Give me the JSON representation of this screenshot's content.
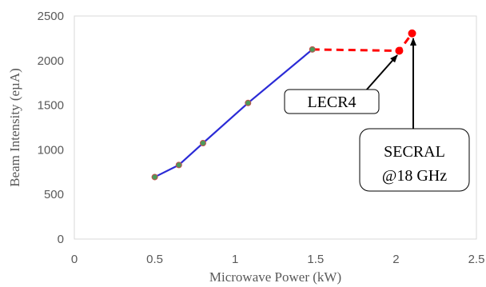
{
  "chart_data": {
    "type": "line",
    "xlabel": "Microwave Power (kW)",
    "ylabel": "Beam Intensity (eµA)",
    "xlim": [
      0,
      2.5
    ],
    "ylim": [
      0,
      2500
    ],
    "x_ticks": [
      "0",
      "0.5",
      "1",
      "1.5",
      "2",
      "2.5"
    ],
    "y_ticks": [
      "0",
      "500",
      "1000",
      "1500",
      "2000",
      "2500"
    ],
    "grid": false,
    "series": [
      {
        "line_color": "#2b2bd6",
        "line_style": "solid",
        "marker_color": "#4c9a5a",
        "points": [
          {
            "x": 0.5,
            "y": 695
          },
          {
            "x": 0.65,
            "y": 830
          },
          {
            "x": 0.8,
            "y": 1075
          },
          {
            "x": 1.08,
            "y": 1525
          },
          {
            "x": 1.48,
            "y": 2125
          }
        ]
      },
      {
        "line_color": "#ff0000",
        "line_style": "dashed",
        "marker_color": "#ff0000",
        "points": [
          {
            "x": 1.48,
            "y": 2125
          },
          {
            "x": 2.02,
            "y": 2110
          },
          {
            "x": 2.1,
            "y": 2305
          }
        ]
      }
    ],
    "annotations": [
      {
        "lines": [
          "LECR4"
        ],
        "points_to": {
          "x": 2.02,
          "y": 2110
        }
      },
      {
        "lines": [
          "SECRAL",
          "@18 GHz"
        ],
        "points_to": {
          "x": 2.1,
          "y": 2305
        }
      }
    ]
  }
}
